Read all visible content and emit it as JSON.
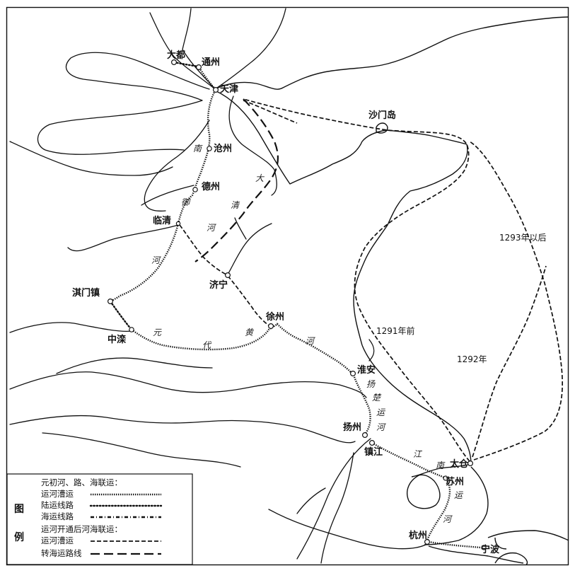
{
  "cities": {
    "dadu": "大都",
    "tongzhou": "通州",
    "tianjin": "天津",
    "shamendao": "沙门岛",
    "cangzhou": "沧州",
    "dezhou": "德州",
    "linqing": "临清",
    "jining": "济宁",
    "qimenzhen": "淇门镇",
    "zhongluan": "中滦",
    "xuzhou": "徐州",
    "huaian": "淮安",
    "yangzhou": "扬州",
    "zhenjiang": "镇江",
    "taicang": "太仓",
    "suzhou": "苏州",
    "hangzhou": "杭州",
    "ningbo": "宁波"
  },
  "river_labels": {
    "wei_1": "南",
    "wei_2": "御",
    "wei_3": "河",
    "daqing_1": "大",
    "daqing_2": "清",
    "daqing_3": "河",
    "yellow_1": "元",
    "yellow_2": "代",
    "yellow_3": "黄",
    "yellow_4": "河",
    "canal_1": "扬",
    "canal_2": "楚",
    "canal_3": "运",
    "canal_4": "河",
    "jiangnan_1": "江",
    "jiangnan_2": "南",
    "jiangnan_3": "运",
    "jiangnan_4": "河"
  },
  "years": {
    "y1293": "1293年以后",
    "y1291": "1291年前",
    "y1292": "1292年"
  },
  "legend": {
    "tu": "图",
    "li": "例",
    "group1_title": "元初河、路、海联运：",
    "group1_item1": "运河漕运",
    "group1_item2": "陆运线路",
    "group1_item3": "海运线路",
    "group2_title": "运河开通后河海联运：",
    "group2_item1": "运河漕运",
    "group2_item2": "转海运路线"
  }
}
